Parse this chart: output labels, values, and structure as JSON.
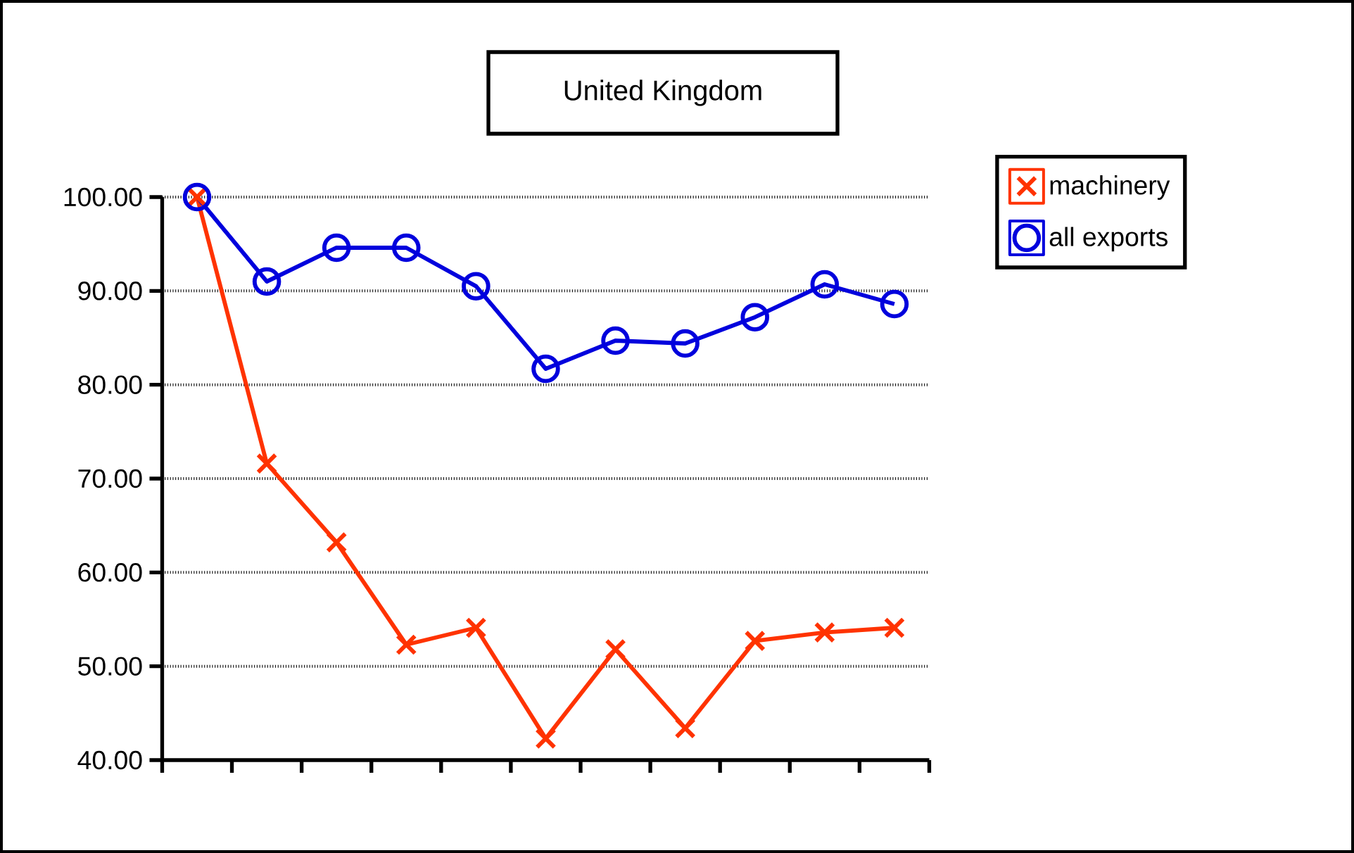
{
  "chart_data": {
    "type": "line",
    "title": "United Kingdom",
    "categories": [
      null,
      null,
      null,
      null,
      null,
      null,
      null,
      null,
      null,
      null,
      null
    ],
    "series": [
      {
        "name": "machinery",
        "color": "#ff3300",
        "marker": "cross",
        "values": [
          100,
          71.6,
          63.2,
          52.3,
          54.1,
          42.3,
          51.8,
          43.4,
          52.7,
          53.6,
          54.1
        ]
      },
      {
        "name": "all exports",
        "color": "#0000dd",
        "marker": "circle",
        "values": [
          100,
          91.0,
          94.6,
          94.6,
          90.5,
          81.7,
          84.7,
          84.4,
          87.2,
          90.7,
          88.6
        ]
      }
    ],
    "ylim": [
      40,
      100
    ],
    "yticks": [
      {
        "value": 40,
        "label": "40.00"
      },
      {
        "value": 50,
        "label": "50.00"
      },
      {
        "value": 60,
        "label": "60.00"
      },
      {
        "value": 70,
        "label": "70.00"
      },
      {
        "value": 80,
        "label": "80.00"
      },
      {
        "value": 90,
        "label": "90.00"
      },
      {
        "value": 100,
        "label": "100.00"
      }
    ],
    "grid": "y",
    "legend": "right",
    "line_style": "solid"
  }
}
